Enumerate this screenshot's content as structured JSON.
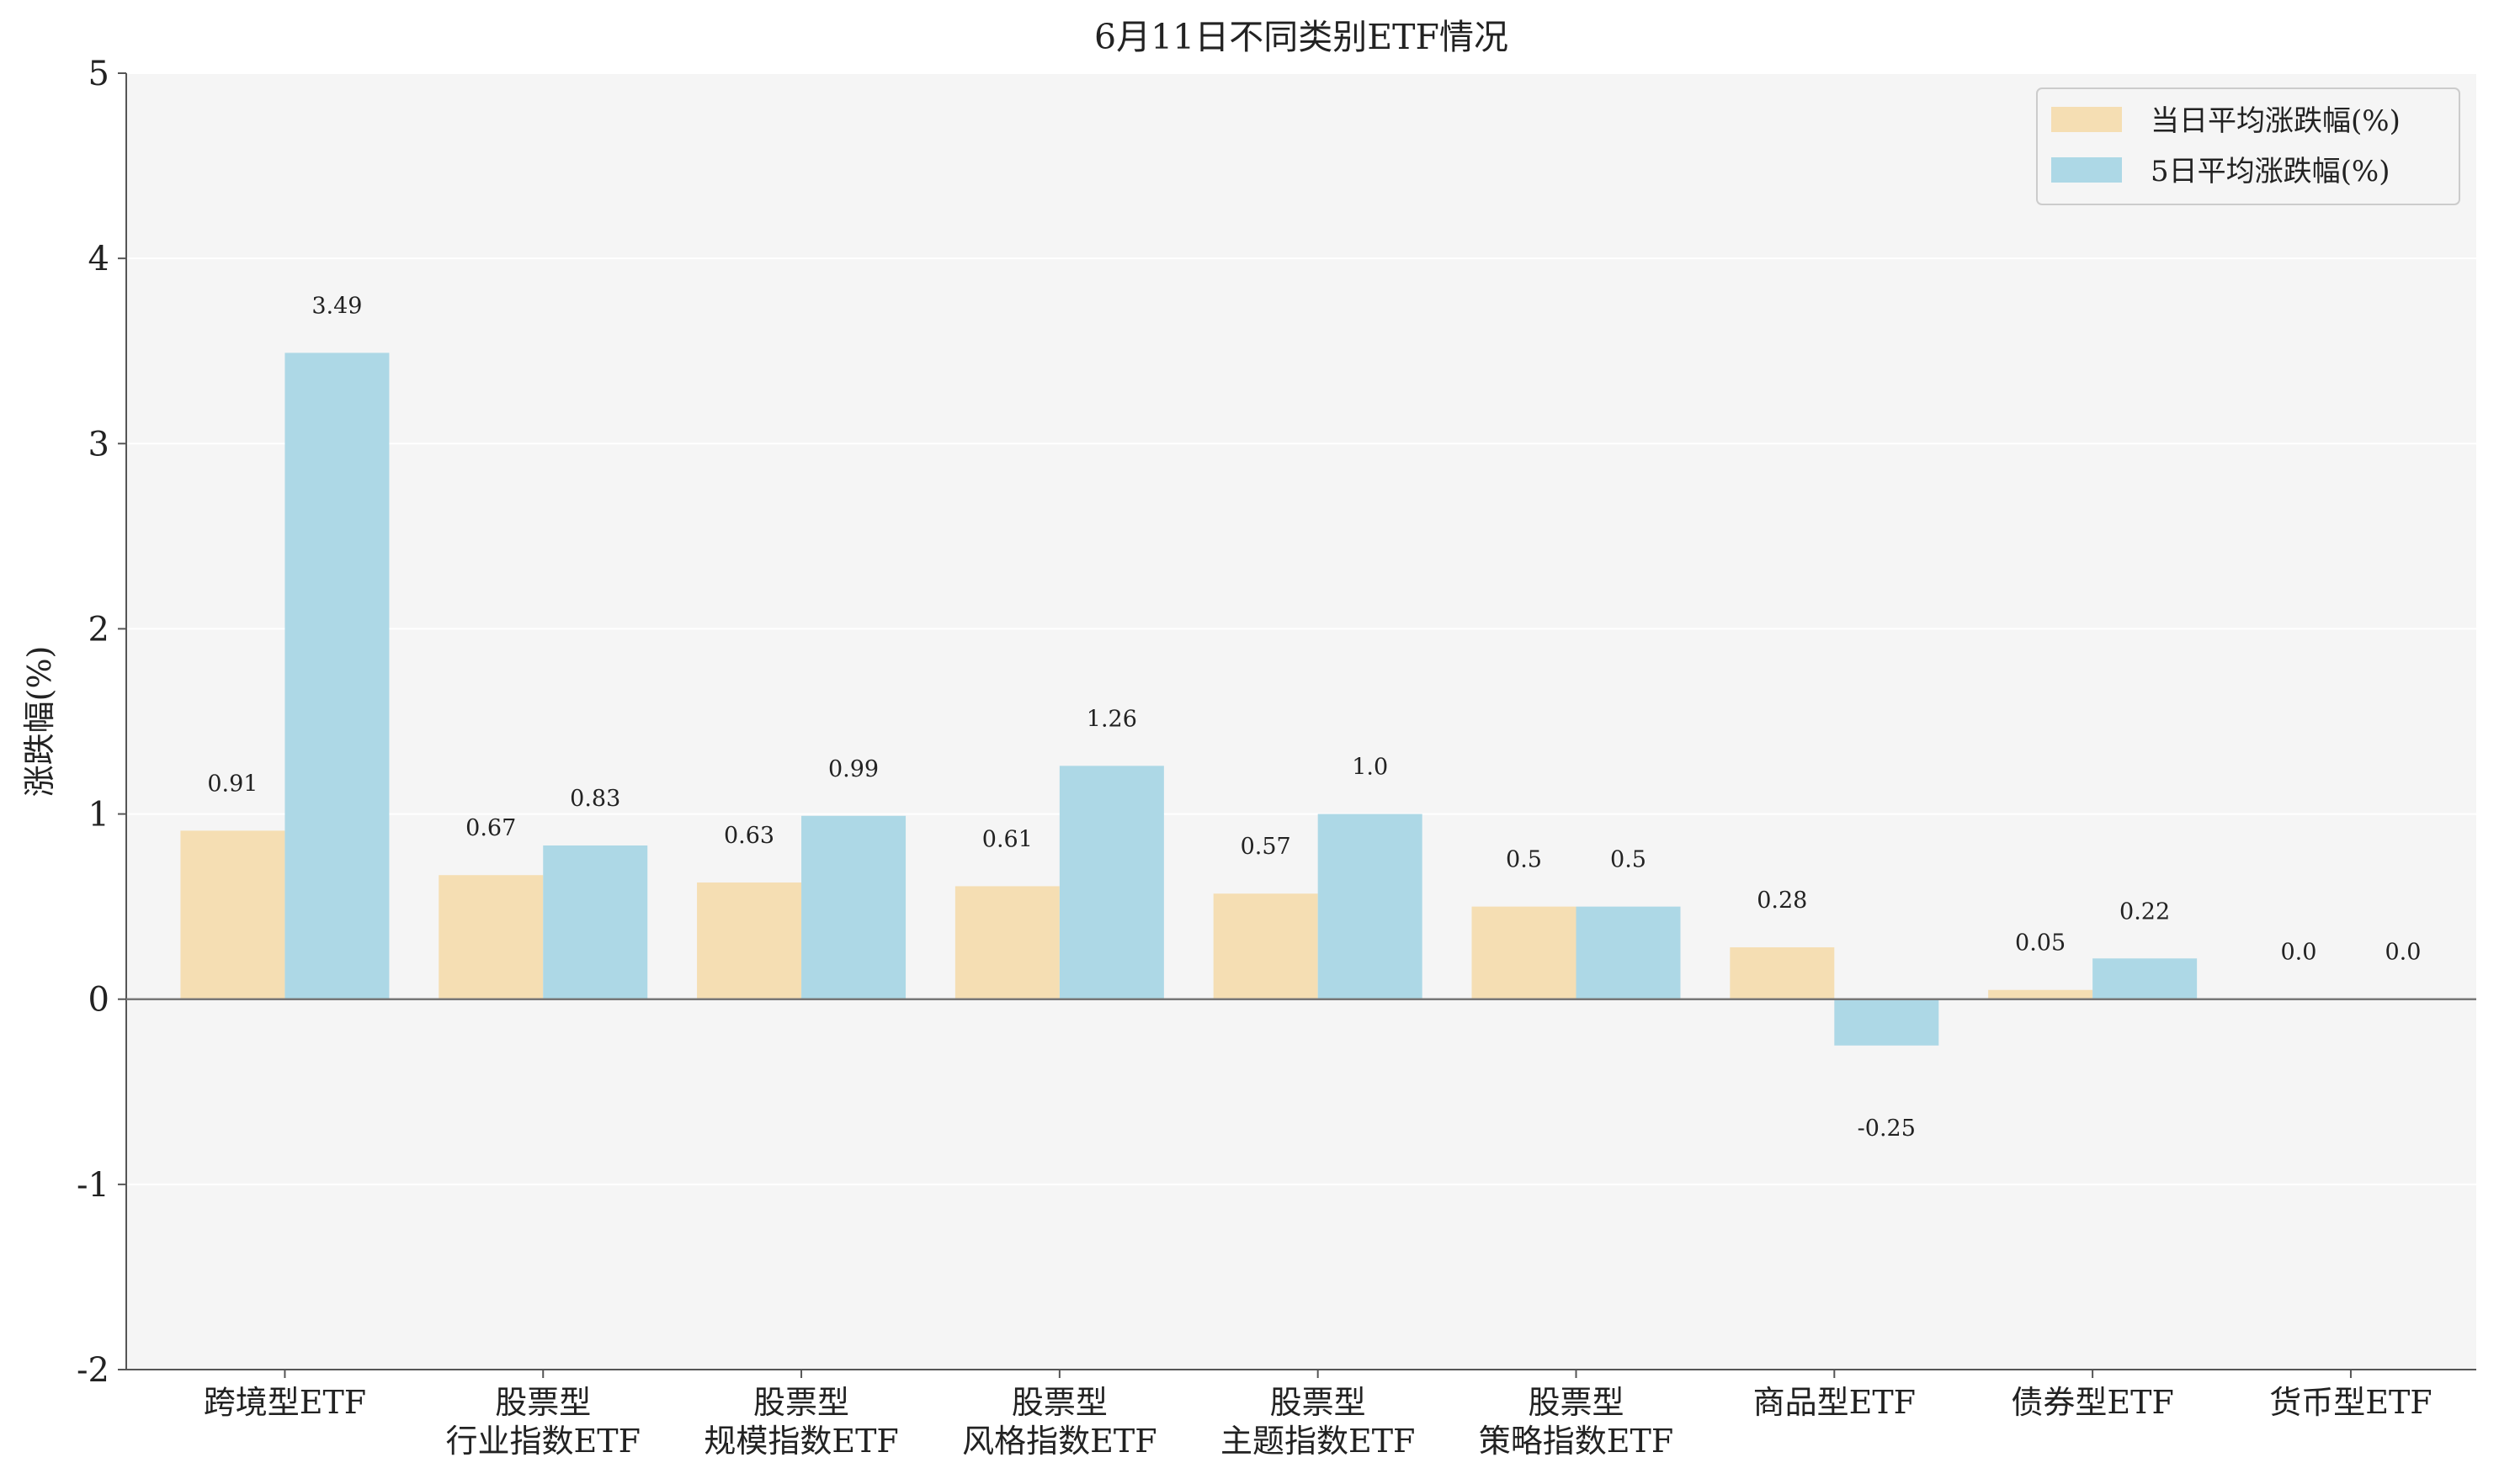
{
  "chart_data": {
    "type": "bar",
    "title": "6月11日不同类别ETF情况",
    "xlabel": "",
    "ylabel": "涨跌幅(%)",
    "ylim": [
      -2,
      5
    ],
    "yticks": [
      -2,
      -1,
      0,
      1,
      2,
      3,
      4,
      5
    ],
    "categories": [
      [
        "跨境型ETF"
      ],
      [
        "股票型",
        "行业指数ETF"
      ],
      [
        "股票型",
        "规模指数ETF"
      ],
      [
        "股票型",
        "风格指数ETF"
      ],
      [
        "股票型",
        "主题指数ETF"
      ],
      [
        "股票型",
        "策略指数ETF"
      ],
      [
        "商品型ETF"
      ],
      [
        "债券型ETF"
      ],
      [
        "货币型ETF"
      ]
    ],
    "series": [
      {
        "name": "当日平均涨跌幅(%)",
        "color": "#f5deb3",
        "values": [
          0.91,
          0.67,
          0.63,
          0.61,
          0.57,
          0.5,
          0.28,
          0.05,
          0.0
        ],
        "labels": [
          "0.91",
          "0.67",
          "0.63",
          "0.61",
          "0.57",
          "0.5",
          "0.28",
          "0.05",
          "0.0"
        ]
      },
      {
        "name": "5日平均涨跌幅(%)",
        "color": "#add8e6",
        "values": [
          3.49,
          0.83,
          0.99,
          1.26,
          1.0,
          0.5,
          -0.25,
          0.22,
          0.0
        ],
        "labels": [
          "3.49",
          "0.83",
          "0.99",
          "1.26",
          "1.0",
          "0.5",
          "-0.25",
          "0.22",
          "0.0"
        ]
      }
    ],
    "grid": true,
    "legend_position": "top-right",
    "plot_background": "#f5f5f5"
  }
}
